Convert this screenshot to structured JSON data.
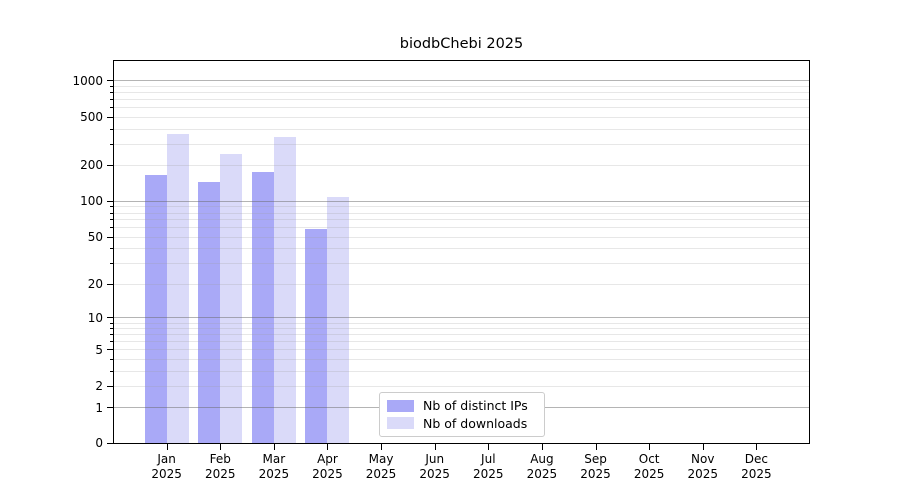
{
  "title": "biodbChebi 2025",
  "chart_data": {
    "type": "bar",
    "title": "biodbChebi 2025",
    "categories": [
      "Jan 2025",
      "Feb 2025",
      "Mar 2025",
      "Apr 2025",
      "May 2025",
      "Jun 2025",
      "Jul 2025",
      "Aug 2025",
      "Sep 2025",
      "Oct 2025",
      "Nov 2025",
      "Dec 2025"
    ],
    "series": [
      {
        "name": "Nb of distinct IPs",
        "color": "#a9a9f7",
        "values": [
          165,
          145,
          174,
          58,
          0,
          0,
          0,
          0,
          0,
          0,
          0,
          0
        ]
      },
      {
        "name": "Nb of downloads",
        "color": "#dadaf9",
        "values": [
          360,
          245,
          340,
          108,
          0,
          0,
          0,
          0,
          0,
          0,
          0,
          0
        ]
      }
    ],
    "xlabel": "",
    "ylabel": "",
    "yscale": "log1p",
    "ylim": [
      0,
      1480
    ],
    "y_axis": {
      "tick_values": [
        0,
        1,
        2,
        5,
        10,
        20,
        50,
        100,
        200,
        500,
        1000
      ],
      "tick_labels": [
        "0",
        "1",
        "2",
        "5",
        "10",
        "20",
        "50",
        "100",
        "200",
        "500",
        "1000"
      ],
      "major_grid_values": [
        1,
        10,
        100,
        1000
      ],
      "minor_grid_values": [
        2,
        3,
        4,
        5,
        6,
        7,
        8,
        9,
        20,
        30,
        40,
        50,
        60,
        70,
        80,
        90,
        200,
        300,
        400,
        500,
        600,
        700,
        800,
        900
      ]
    },
    "grid": true,
    "legend": {
      "position": "inside lower-center",
      "entries": [
        {
          "label": "Nb of distinct IPs",
          "color": "#a9a9f7"
        },
        {
          "label": "Nb of downloads",
          "color": "#dadaf9"
        }
      ]
    },
    "colors": {
      "background": "#ffffff",
      "spine": "#000000",
      "major_grid": "#6e6e6e",
      "minor_grid": "#dcdcdc",
      "legend_border": "#cccccc"
    }
  }
}
